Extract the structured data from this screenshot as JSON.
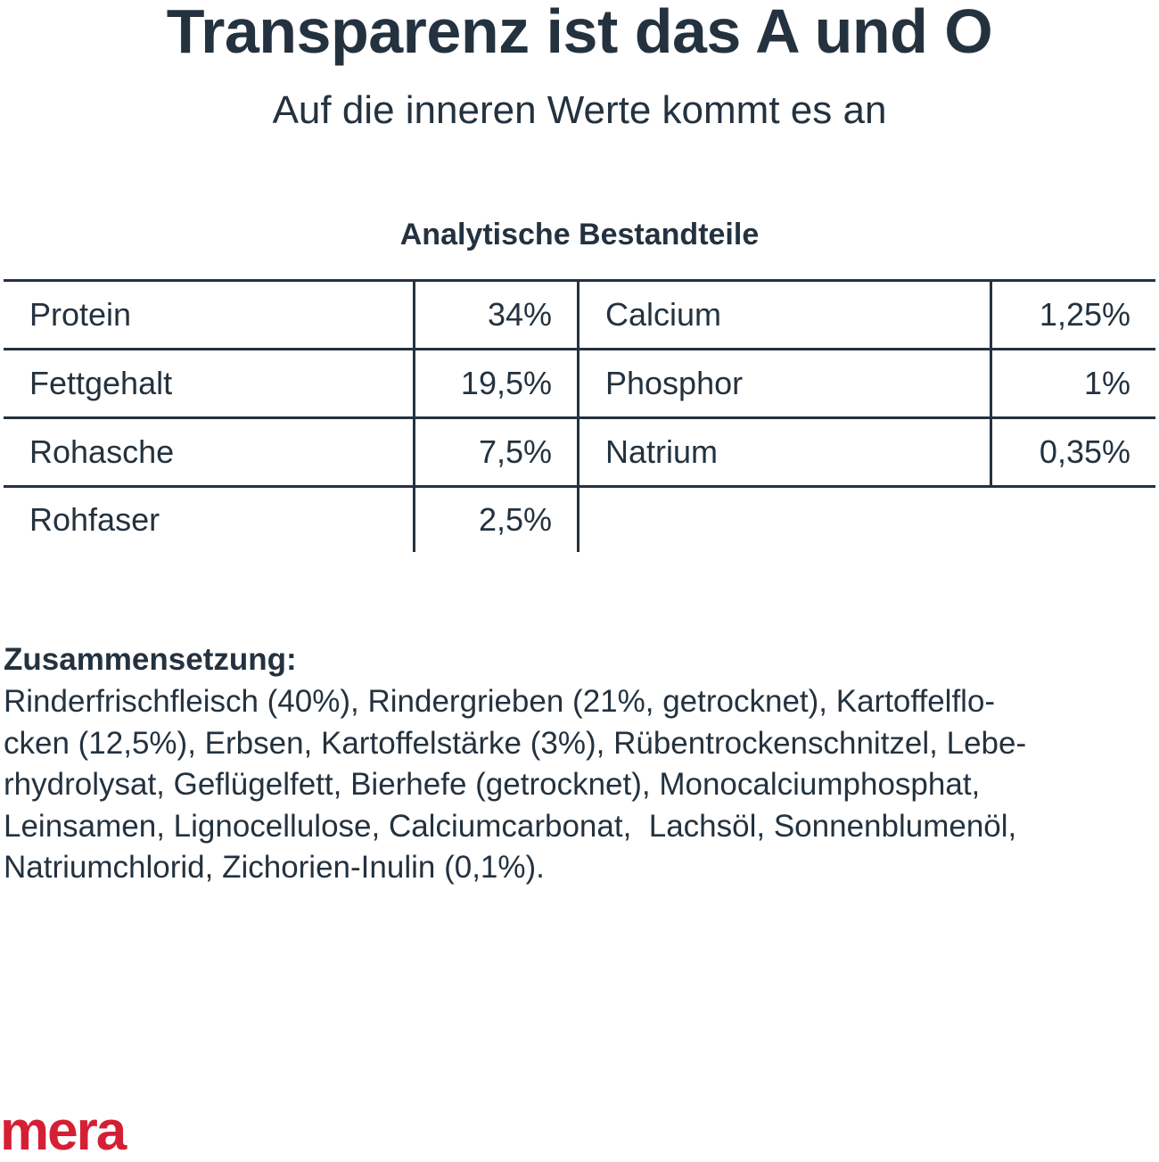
{
  "header": {
    "title": "Transparenz ist das A und O",
    "subtitle": "Auf die inneren Werte kommt es an"
  },
  "analysis": {
    "heading": "Analytische Bestandteile",
    "rows": [
      {
        "left_label": "Protein",
        "left_value": "34%",
        "right_label": "Calcium",
        "right_value": "1,25%"
      },
      {
        "left_label": "Fettgehalt",
        "left_value": "19,5%",
        "right_label": "Phosphor",
        "right_value": "1%"
      },
      {
        "left_label": "Rohasche",
        "left_value": "7,5%",
        "right_label": "Natrium",
        "right_value": "0,35%"
      },
      {
        "left_label": "Rohfaser",
        "left_value": "2,5%",
        "right_label": "",
        "right_value": ""
      }
    ]
  },
  "composition": {
    "heading": "Zusammensetzung:",
    "lines": [
      "Rinderfrischfleisch (40%), Rindergrieben (21%, getrocknet), Kartoffelflo-",
      "cken (12,5%), Erbsen, Kartoffelstärke (3%), Rübentrockenschnitzel, Lebe-",
      "rhydrolysat, Geflügelfett, Bierhefe (getrocknet), Monocalciumphosphat,",
      "Leinsamen, Lignocellulose, Calciumcarbonat,  Lachsöl, Sonnenblumenöl,",
      "Natriumchlorid, Zichorien-Inulin (0,1%)."
    ]
  },
  "brand": {
    "logo_text": "mera",
    "color": "#d51f35"
  },
  "colors": {
    "text": "#24323f",
    "background": "#ffffff"
  }
}
